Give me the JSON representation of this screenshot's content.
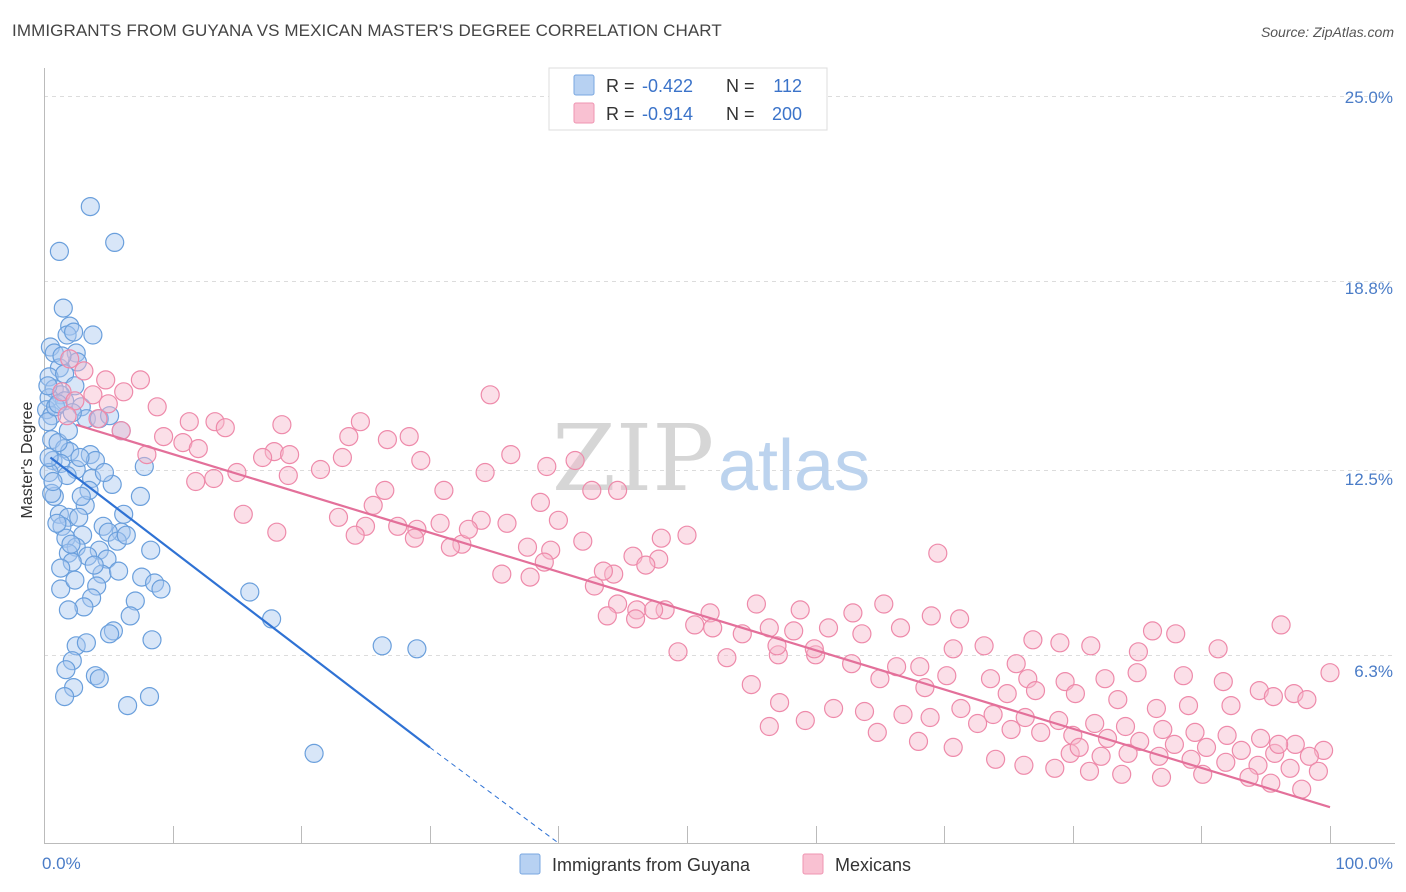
{
  "chart_data": {
    "type": "scatter",
    "title": "IMMIGRANTS FROM GUYANA VS MEXICAN MASTER'S DEGREE CORRELATION CHART",
    "source": "Source: ZipAtlas.com",
    "ylabel": "Master's Degree",
    "xlabel": "",
    "x_range": [
      0,
      100
    ],
    "y_range": [
      0,
      26.5
    ],
    "x_tick_labels": [
      {
        "value": 0,
        "label": "0.0%"
      },
      {
        "value": 100,
        "label": "100.0%"
      }
    ],
    "y_ticks": [
      {
        "value": 25.0,
        "label": "25.0%"
      },
      {
        "value": 18.8,
        "label": "18.8%"
      },
      {
        "value": 12.5,
        "label": "12.5%"
      },
      {
        "value": 6.3,
        "label": "6.3%"
      }
    ],
    "watermark": {
      "zip": "ZIP",
      "atlas": "atlas"
    },
    "legend_stats": [
      {
        "r_label": "R =",
        "r_value": "-0.422",
        "n_label": "N =",
        "n_value": "112"
      },
      {
        "r_label": "R =",
        "r_value": "-0.914",
        "n_label": "N =",
        "n_value": "200"
      }
    ],
    "series": [
      {
        "name": "Immigrants from Guyana",
        "color": "#a9c8ef",
        "stroke": "#6a9fdc",
        "line_color": "#2f72d4",
        "trendline": {
          "x0": 0.5,
          "y0": 12.9,
          "x1": 30.0,
          "y1": 3.2,
          "dash_to_x": 40.0,
          "dash_to_y": 0.0
        },
        "points": [
          [
            3.6,
            21.3
          ],
          [
            1.2,
            19.8
          ],
          [
            5.5,
            20.1
          ],
          [
            1.5,
            17.9
          ],
          [
            2.0,
            17.3
          ],
          [
            1.8,
            17.0
          ],
          [
            3.8,
            17.0
          ],
          [
            2.3,
            17.1
          ],
          [
            0.5,
            16.6
          ],
          [
            0.8,
            16.4
          ],
          [
            2.5,
            16.4
          ],
          [
            2.6,
            16.1
          ],
          [
            1.2,
            15.9
          ],
          [
            0.4,
            15.6
          ],
          [
            1.6,
            15.7
          ],
          [
            2.4,
            15.3
          ],
          [
            0.8,
            15.2
          ],
          [
            1.3,
            15.0
          ],
          [
            0.4,
            14.9
          ],
          [
            1.6,
            14.8
          ],
          [
            2.9,
            14.6
          ],
          [
            0.2,
            14.5
          ],
          [
            0.6,
            14.3
          ],
          [
            0.3,
            14.1
          ],
          [
            3.3,
            14.2
          ],
          [
            4.3,
            14.2
          ],
          [
            5.1,
            14.3
          ],
          [
            2.2,
            14.4
          ],
          [
            6.0,
            13.8
          ],
          [
            0.6,
            13.5
          ],
          [
            1.6,
            13.2
          ],
          [
            2.0,
            13.1
          ],
          [
            3.6,
            13.0
          ],
          [
            4.0,
            12.8
          ],
          [
            0.7,
            12.8
          ],
          [
            1.3,
            12.7
          ],
          [
            2.5,
            12.5
          ],
          [
            0.4,
            12.4
          ],
          [
            1.8,
            12.3
          ],
          [
            3.7,
            12.2
          ],
          [
            7.8,
            12.6
          ],
          [
            5.3,
            12.0
          ],
          [
            7.5,
            11.6
          ],
          [
            0.8,
            11.6
          ],
          [
            3.2,
            11.3
          ],
          [
            1.2,
            11.0
          ],
          [
            6.2,
            11.0
          ],
          [
            1.9,
            10.9
          ],
          [
            2.7,
            10.9
          ],
          [
            1.4,
            10.6
          ],
          [
            4.6,
            10.6
          ],
          [
            6.0,
            10.4
          ],
          [
            5.0,
            10.4
          ],
          [
            3.0,
            10.3
          ],
          [
            1.7,
            10.2
          ],
          [
            5.7,
            10.1
          ],
          [
            2.5,
            9.9
          ],
          [
            4.3,
            9.8
          ],
          [
            8.3,
            9.8
          ],
          [
            1.9,
            9.7
          ],
          [
            3.4,
            9.6
          ],
          [
            4.9,
            9.5
          ],
          [
            2.2,
            9.4
          ],
          [
            1.3,
            9.2
          ],
          [
            4.5,
            9.0
          ],
          [
            7.6,
            8.9
          ],
          [
            8.6,
            8.7
          ],
          [
            4.1,
            8.6
          ],
          [
            1.3,
            8.5
          ],
          [
            9.1,
            8.5
          ],
          [
            16.0,
            8.4
          ],
          [
            3.7,
            8.2
          ],
          [
            7.1,
            8.1
          ],
          [
            3.1,
            7.9
          ],
          [
            1.9,
            7.8
          ],
          [
            6.7,
            7.6
          ],
          [
            17.7,
            7.5
          ],
          [
            5.4,
            7.1
          ],
          [
            5.1,
            7.0
          ],
          [
            8.4,
            6.8
          ],
          [
            2.5,
            6.6
          ],
          [
            3.3,
            6.7
          ],
          [
            26.3,
            6.6
          ],
          [
            29.0,
            6.5
          ],
          [
            2.2,
            6.1
          ],
          [
            1.7,
            5.8
          ],
          [
            4.0,
            5.6
          ],
          [
            4.3,
            5.5
          ],
          [
            2.3,
            5.2
          ],
          [
            1.6,
            4.9
          ],
          [
            8.2,
            4.9
          ],
          [
            6.5,
            4.6
          ],
          [
            0.4,
            12.9
          ],
          [
            0.9,
            14.6
          ],
          [
            1.1,
            13.4
          ],
          [
            2.8,
            12.9
          ],
          [
            0.6,
            11.7
          ],
          [
            1.0,
            10.7
          ],
          [
            3.5,
            11.8
          ],
          [
            2.1,
            10.0
          ],
          [
            5.8,
            9.1
          ],
          [
            0.3,
            15.3
          ],
          [
            1.4,
            16.3
          ],
          [
            2.9,
            11.6
          ],
          [
            3.9,
            9.3
          ],
          [
            6.4,
            10.3
          ],
          [
            0.7,
            12.1
          ],
          [
            1.9,
            13.8
          ],
          [
            4.7,
            12.4
          ],
          [
            2.4,
            8.8
          ],
          [
            21.0,
            3.0
          ],
          [
            1.1,
            14.7
          ]
        ]
      },
      {
        "name": "Mexicans",
        "color": "#f7b7cb",
        "stroke": "#ee8aaa",
        "line_color": "#e3709a",
        "trendline": {
          "x0": 2.5,
          "y0": 14.0,
          "x1": 100.0,
          "y1": 1.2
        },
        "points": [
          [
            2.0,
            16.2
          ],
          [
            3.1,
            15.8
          ],
          [
            4.8,
            15.5
          ],
          [
            7.5,
            15.5
          ],
          [
            1.4,
            15.1
          ],
          [
            3.8,
            15.0
          ],
          [
            6.2,
            15.1
          ],
          [
            2.4,
            14.8
          ],
          [
            5.0,
            14.7
          ],
          [
            8.8,
            14.6
          ],
          [
            1.8,
            14.3
          ],
          [
            4.2,
            14.2
          ],
          [
            6.0,
            13.8
          ],
          [
            11.3,
            14.1
          ],
          [
            13.3,
            14.1
          ],
          [
            14.1,
            13.9
          ],
          [
            18.5,
            14.0
          ],
          [
            24.6,
            14.1
          ],
          [
            9.3,
            13.6
          ],
          [
            10.8,
            13.4
          ],
          [
            12.0,
            13.2
          ],
          [
            17.9,
            13.1
          ],
          [
            17.0,
            12.9
          ],
          [
            19.1,
            13.0
          ],
          [
            23.7,
            13.6
          ],
          [
            26.7,
            13.5
          ],
          [
            28.4,
            13.6
          ],
          [
            8.0,
            13.0
          ],
          [
            11.8,
            12.1
          ],
          [
            13.2,
            12.2
          ],
          [
            15.0,
            12.4
          ],
          [
            19.0,
            12.3
          ],
          [
            21.5,
            12.5
          ],
          [
            23.2,
            12.9
          ],
          [
            29.3,
            12.8
          ],
          [
            36.3,
            13.0
          ],
          [
            39.1,
            12.6
          ],
          [
            41.3,
            12.8
          ],
          [
            34.3,
            12.4
          ],
          [
            26.5,
            11.8
          ],
          [
            31.1,
            11.8
          ],
          [
            38.6,
            11.4
          ],
          [
            44.6,
            11.8
          ],
          [
            42.6,
            11.8
          ],
          [
            15.5,
            11.0
          ],
          [
            22.9,
            10.9
          ],
          [
            25.0,
            10.6
          ],
          [
            29.0,
            10.5
          ],
          [
            30.8,
            10.7
          ],
          [
            34.0,
            10.8
          ],
          [
            36.0,
            10.7
          ],
          [
            40.0,
            10.8
          ],
          [
            18.1,
            10.4
          ],
          [
            24.2,
            10.3
          ],
          [
            28.8,
            10.2
          ],
          [
            32.5,
            10.0
          ],
          [
            37.6,
            9.9
          ],
          [
            39.4,
            9.8
          ],
          [
            41.9,
            10.1
          ],
          [
            48.0,
            10.2
          ],
          [
            50.0,
            10.3
          ],
          [
            45.8,
            9.6
          ],
          [
            47.8,
            9.5
          ],
          [
            35.6,
            9.0
          ],
          [
            37.8,
            8.9
          ],
          [
            44.3,
            9.0
          ],
          [
            46.8,
            9.3
          ],
          [
            69.5,
            9.7
          ],
          [
            42.8,
            8.6
          ],
          [
            44.6,
            8.0
          ],
          [
            46.1,
            7.8
          ],
          [
            48.3,
            7.8
          ],
          [
            51.8,
            7.7
          ],
          [
            55.4,
            8.0
          ],
          [
            58.8,
            7.8
          ],
          [
            62.9,
            7.7
          ],
          [
            65.3,
            8.0
          ],
          [
            69.0,
            7.6
          ],
          [
            71.2,
            7.5
          ],
          [
            43.8,
            7.6
          ],
          [
            50.6,
            7.3
          ],
          [
            52.0,
            7.2
          ],
          [
            56.4,
            7.2
          ],
          [
            58.3,
            7.1
          ],
          [
            61.0,
            7.2
          ],
          [
            63.6,
            7.0
          ],
          [
            66.6,
            7.2
          ],
          [
            70.7,
            6.5
          ],
          [
            73.1,
            6.6
          ],
          [
            76.9,
            6.8
          ],
          [
            79.0,
            6.7
          ],
          [
            81.4,
            6.6
          ],
          [
            85.1,
            6.4
          ],
          [
            91.3,
            6.5
          ],
          [
            96.2,
            7.3
          ],
          [
            86.2,
            7.1
          ],
          [
            88.0,
            7.0
          ],
          [
            49.3,
            6.4
          ],
          [
            53.1,
            6.2
          ],
          [
            57.1,
            6.3
          ],
          [
            60.0,
            6.3
          ],
          [
            62.8,
            6.0
          ],
          [
            66.3,
            5.9
          ],
          [
            68.1,
            5.9
          ],
          [
            70.2,
            5.6
          ],
          [
            73.6,
            5.5
          ],
          [
            76.5,
            5.5
          ],
          [
            79.4,
            5.4
          ],
          [
            82.5,
            5.5
          ],
          [
            85.0,
            5.7
          ],
          [
            88.6,
            5.6
          ],
          [
            91.7,
            5.4
          ],
          [
            94.5,
            5.1
          ],
          [
            97.2,
            5.0
          ],
          [
            100.0,
            5.7
          ],
          [
            55.0,
            5.3
          ],
          [
            65.0,
            5.5
          ],
          [
            68.5,
            5.2
          ],
          [
            74.9,
            5.0
          ],
          [
            77.1,
            5.1
          ],
          [
            80.2,
            5.0
          ],
          [
            83.5,
            4.8
          ],
          [
            86.5,
            4.5
          ],
          [
            89.0,
            4.6
          ],
          [
            92.3,
            4.6
          ],
          [
            95.6,
            4.9
          ],
          [
            98.2,
            4.8
          ],
          [
            71.3,
            4.5
          ],
          [
            73.8,
            4.3
          ],
          [
            76.3,
            4.2
          ],
          [
            78.9,
            4.1
          ],
          [
            81.7,
            4.0
          ],
          [
            84.1,
            3.9
          ],
          [
            87.0,
            3.8
          ],
          [
            89.5,
            3.7
          ],
          [
            92.0,
            3.6
          ],
          [
            94.6,
            3.5
          ],
          [
            97.3,
            3.3
          ],
          [
            99.5,
            3.1
          ],
          [
            72.6,
            4.0
          ],
          [
            75.2,
            3.8
          ],
          [
            77.5,
            3.7
          ],
          [
            80.0,
            3.6
          ],
          [
            82.7,
            3.5
          ],
          [
            85.2,
            3.4
          ],
          [
            87.9,
            3.3
          ],
          [
            90.4,
            3.2
          ],
          [
            93.1,
            3.1
          ],
          [
            95.7,
            3.0
          ],
          [
            98.4,
            2.9
          ],
          [
            57.2,
            4.7
          ],
          [
            61.4,
            4.5
          ],
          [
            63.8,
            4.4
          ],
          [
            66.8,
            4.3
          ],
          [
            68.9,
            4.2
          ],
          [
            59.2,
            4.1
          ],
          [
            64.8,
            3.7
          ],
          [
            56.4,
            3.9
          ],
          [
            84.3,
            3.0
          ],
          [
            86.7,
            2.9
          ],
          [
            89.2,
            2.8
          ],
          [
            91.9,
            2.7
          ],
          [
            94.4,
            2.6
          ],
          [
            96.9,
            2.5
          ],
          [
            99.1,
            2.4
          ],
          [
            76.2,
            2.6
          ],
          [
            78.6,
            2.5
          ],
          [
            81.3,
            2.4
          ],
          [
            83.8,
            2.3
          ],
          [
            86.9,
            2.2
          ],
          [
            93.7,
            2.2
          ],
          [
            95.4,
            2.0
          ],
          [
            97.8,
            1.8
          ],
          [
            90.1,
            2.3
          ],
          [
            74.0,
            2.8
          ],
          [
            70.7,
            3.2
          ],
          [
            68.0,
            3.4
          ],
          [
            79.8,
            3.0
          ],
          [
            82.2,
            2.9
          ],
          [
            34.7,
            15.0
          ],
          [
            25.6,
            11.3
          ],
          [
            27.5,
            10.6
          ],
          [
            33.0,
            10.5
          ],
          [
            31.6,
            9.9
          ],
          [
            38.9,
            9.4
          ],
          [
            43.5,
            9.1
          ],
          [
            47.4,
            7.8
          ],
          [
            54.3,
            7.0
          ],
          [
            57.0,
            6.6
          ],
          [
            59.9,
            6.5
          ],
          [
            80.5,
            3.2
          ],
          [
            96.0,
            3.3
          ],
          [
            75.6,
            6.0
          ],
          [
            46.0,
            7.5
          ]
        ]
      }
    ]
  }
}
